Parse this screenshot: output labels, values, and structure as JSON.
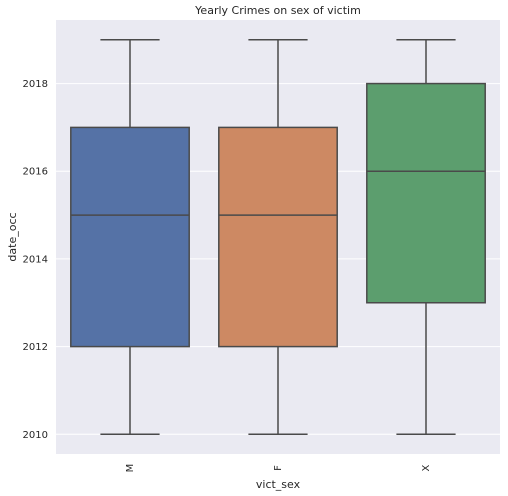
{
  "chart_data": {
    "type": "box",
    "title": "Yearly Crimes on sex of victim",
    "xlabel": "vict_sex",
    "ylabel": "date_occ",
    "categories": [
      "M",
      "F",
      "X"
    ],
    "boxes": [
      {
        "category": "M",
        "whisker_low": 2010,
        "q1": 2012,
        "median": 2015,
        "q3": 2017,
        "whisker_high": 2019,
        "color": "#5572a6"
      },
      {
        "category": "F",
        "whisker_low": 2010,
        "q1": 2012,
        "median": 2015,
        "q3": 2017,
        "whisker_high": 2019,
        "color": "#cd8963"
      },
      {
        "category": "X",
        "whisker_low": 2010,
        "q1": 2013,
        "median": 2016,
        "q3": 2018,
        "whisker_high": 2019,
        "color": "#5c9e6e"
      }
    ],
    "ylim": [
      2009.55,
      2019.45
    ],
    "yticks": [
      "2010",
      "2012",
      "2014",
      "2016",
      "2018"
    ],
    "grid": true,
    "background": "#eaeaf2"
  }
}
